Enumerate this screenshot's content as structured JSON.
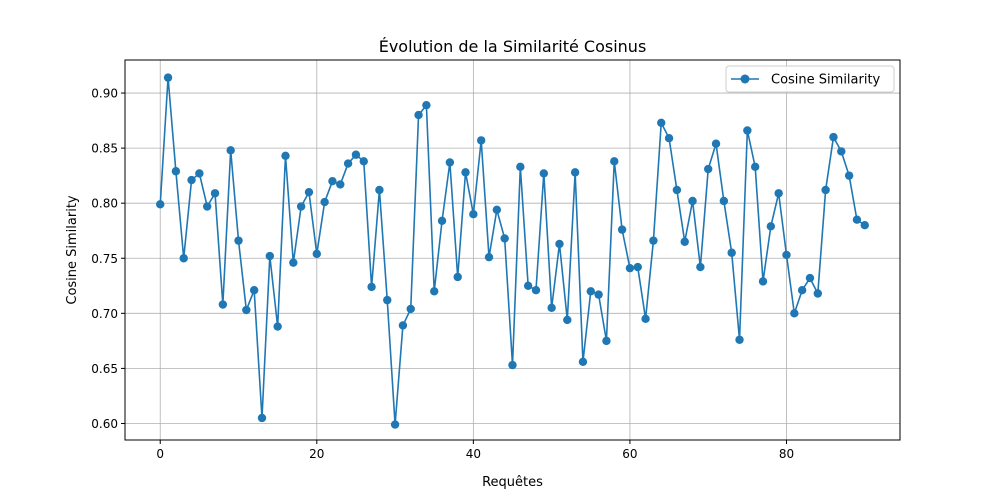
{
  "chart_data": {
    "type": "line",
    "title": "Évolution de la Similarité Cosinus",
    "xlabel": "Requêtes",
    "ylabel": "Cosine Similarity",
    "xlim": [
      -4.5,
      94.5
    ],
    "ylim": [
      0.585,
      0.93
    ],
    "xticks": [
      0,
      20,
      40,
      60,
      80
    ],
    "yticks": [
      0.6,
      0.65,
      0.7,
      0.75,
      0.8,
      0.85,
      0.9
    ],
    "xtick_labels": [
      "0",
      "20",
      "40",
      "60",
      "80"
    ],
    "ytick_labels": [
      "0.60",
      "0.65",
      "0.70",
      "0.75",
      "0.80",
      "0.85",
      "0.90"
    ],
    "grid": true,
    "legend_position": "top-right",
    "series": [
      {
        "name": "Cosine Similarity",
        "color": "#1f77b4",
        "marker": "circle",
        "x": [
          0,
          1,
          2,
          3,
          4,
          5,
          6,
          7,
          8,
          9,
          10,
          11,
          12,
          13,
          14,
          15,
          16,
          17,
          18,
          19,
          20,
          21,
          22,
          23,
          24,
          25,
          26,
          27,
          28,
          29,
          30,
          31,
          32,
          33,
          34,
          35,
          36,
          37,
          38,
          39,
          40,
          41,
          42,
          43,
          44,
          45,
          46,
          47,
          48,
          49,
          50,
          51,
          52,
          53,
          54,
          55,
          56,
          57,
          58,
          59,
          60,
          61,
          62,
          63,
          64,
          65,
          66,
          67,
          68,
          69,
          70,
          71,
          72,
          73,
          74,
          75,
          76,
          77,
          78,
          79,
          80,
          81,
          82,
          83,
          84,
          85,
          86,
          87,
          88,
          89,
          90
        ],
        "values": [
          0.799,
          0.914,
          0.829,
          0.75,
          0.821,
          0.827,
          0.797,
          0.809,
          0.708,
          0.848,
          0.766,
          0.703,
          0.721,
          0.605,
          0.752,
          0.688,
          0.843,
          0.746,
          0.797,
          0.81,
          0.754,
          0.801,
          0.82,
          0.817,
          0.836,
          0.844,
          0.838,
          0.724,
          0.812,
          0.712,
          0.599,
          0.689,
          0.704,
          0.88,
          0.889,
          0.72,
          0.784,
          0.837,
          0.733,
          0.828,
          0.79,
          0.857,
          0.751,
          0.794,
          0.768,
          0.653,
          0.833,
          0.725,
          0.721,
          0.827,
          0.705,
          0.763,
          0.694,
          0.828,
          0.656,
          0.72,
          0.717,
          0.675,
          0.838,
          0.776,
          0.741,
          0.742,
          0.695,
          0.766,
          0.873,
          0.859,
          0.812,
          0.765,
          0.802,
          0.742,
          0.831,
          0.854,
          0.802,
          0.755,
          0.676,
          0.866,
          0.833,
          0.729,
          0.779,
          0.809,
          0.753,
          0.7,
          0.721,
          0.732,
          0.718,
          0.812,
          0.86,
          0.847,
          0.825,
          0.785,
          0.78
        ]
      }
    ]
  }
}
